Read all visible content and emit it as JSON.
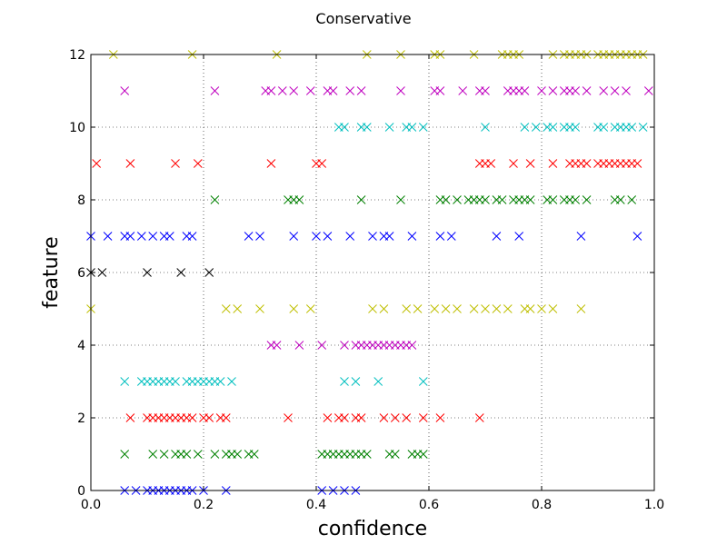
{
  "chart_data": {
    "type": "scatter",
    "title": "Conservative",
    "xlabel": "confidence",
    "ylabel": "feature",
    "xlim": [
      0.0,
      1.0
    ],
    "ylim": [
      0,
      12
    ],
    "x_ticks": [
      "0.0",
      "0.2",
      "0.4",
      "0.6",
      "0.8",
      "1.0"
    ],
    "y_ticks": [
      "0",
      "2",
      "4",
      "6",
      "8",
      "10",
      "12"
    ],
    "grid": true,
    "marker": "x",
    "series": [
      {
        "feature": 0,
        "color": "#0000ff",
        "x": [
          0.06,
          0.08,
          0.1,
          0.11,
          0.12,
          0.13,
          0.14,
          0.15,
          0.16,
          0.17,
          0.18,
          0.2,
          0.24,
          0.41,
          0.43,
          0.45,
          0.47
        ]
      },
      {
        "feature": 1,
        "color": "#008000",
        "x": [
          0.06,
          0.11,
          0.13,
          0.15,
          0.16,
          0.17,
          0.19,
          0.22,
          0.24,
          0.25,
          0.26,
          0.28,
          0.29,
          0.41,
          0.42,
          0.43,
          0.44,
          0.45,
          0.46,
          0.47,
          0.48,
          0.49,
          0.53,
          0.54,
          0.57,
          0.58,
          0.59
        ]
      },
      {
        "feature": 2,
        "color": "#ff0000",
        "x": [
          0.07,
          0.1,
          0.11,
          0.12,
          0.13,
          0.14,
          0.15,
          0.16,
          0.17,
          0.18,
          0.2,
          0.21,
          0.23,
          0.24,
          0.35,
          0.42,
          0.44,
          0.45,
          0.47,
          0.48,
          0.52,
          0.54,
          0.56,
          0.59,
          0.62,
          0.69
        ]
      },
      {
        "feature": 3,
        "color": "#00bfbf",
        "x": [
          0.06,
          0.09,
          0.1,
          0.11,
          0.12,
          0.13,
          0.14,
          0.15,
          0.17,
          0.18,
          0.19,
          0.2,
          0.21,
          0.22,
          0.23,
          0.25,
          0.45,
          0.47,
          0.51,
          0.59
        ]
      },
      {
        "feature": 4,
        "color": "#bf00bf",
        "x": [
          0.32,
          0.33,
          0.37,
          0.41,
          0.45,
          0.47,
          0.48,
          0.49,
          0.5,
          0.51,
          0.52,
          0.53,
          0.54,
          0.55,
          0.56,
          0.57
        ]
      },
      {
        "feature": 5,
        "color": "#bfbf00",
        "x": [
          0.0,
          0.24,
          0.26,
          0.3,
          0.36,
          0.39,
          0.5,
          0.52,
          0.56,
          0.58,
          0.61,
          0.63,
          0.65,
          0.68,
          0.7,
          0.72,
          0.74,
          0.77,
          0.78,
          0.8,
          0.82,
          0.87
        ]
      },
      {
        "feature": 6,
        "color": "#000000",
        "x": [
          0.0,
          0.02,
          0.1,
          0.16,
          0.21
        ]
      },
      {
        "feature": 7,
        "color": "#0000ff",
        "x": [
          0.0,
          0.03,
          0.06,
          0.07,
          0.09,
          0.11,
          0.13,
          0.14,
          0.17,
          0.18,
          0.28,
          0.3,
          0.36,
          0.4,
          0.42,
          0.46,
          0.5,
          0.52,
          0.53,
          0.57,
          0.62,
          0.64,
          0.72,
          0.76,
          0.87,
          0.97
        ]
      },
      {
        "feature": 8,
        "color": "#008000",
        "x": [
          0.22,
          0.35,
          0.36,
          0.37,
          0.48,
          0.55,
          0.62,
          0.63,
          0.65,
          0.67,
          0.68,
          0.69,
          0.7,
          0.72,
          0.73,
          0.75,
          0.76,
          0.77,
          0.78,
          0.81,
          0.82,
          0.84,
          0.85,
          0.86,
          0.88,
          0.93,
          0.94,
          0.96
        ]
      },
      {
        "feature": 9,
        "color": "#ff0000",
        "x": [
          0.01,
          0.07,
          0.15,
          0.19,
          0.32,
          0.4,
          0.41,
          0.69,
          0.7,
          0.71,
          0.75,
          0.78,
          0.82,
          0.85,
          0.86,
          0.87,
          0.88,
          0.9,
          0.91,
          0.92,
          0.93,
          0.94,
          0.95,
          0.96,
          0.97
        ]
      },
      {
        "feature": 10,
        "color": "#00bfbf",
        "x": [
          0.44,
          0.45,
          0.48,
          0.49,
          0.53,
          0.56,
          0.57,
          0.59,
          0.7,
          0.77,
          0.79,
          0.81,
          0.82,
          0.84,
          0.85,
          0.86,
          0.9,
          0.91,
          0.93,
          0.94,
          0.95,
          0.96,
          0.98
        ]
      },
      {
        "feature": 11,
        "color": "#bf00bf",
        "x": [
          0.06,
          0.22,
          0.31,
          0.32,
          0.34,
          0.36,
          0.39,
          0.42,
          0.43,
          0.46,
          0.48,
          0.55,
          0.61,
          0.62,
          0.66,
          0.69,
          0.7,
          0.74,
          0.75,
          0.76,
          0.77,
          0.8,
          0.82,
          0.84,
          0.85,
          0.86,
          0.88,
          0.91,
          0.93,
          0.95,
          0.99
        ]
      },
      {
        "feature": 12,
        "color": "#bfbf00",
        "x": [
          0.04,
          0.18,
          0.33,
          0.49,
          0.55,
          0.61,
          0.62,
          0.68,
          0.73,
          0.74,
          0.75,
          0.76,
          0.82,
          0.84,
          0.85,
          0.86,
          0.87,
          0.88,
          0.9,
          0.91,
          0.92,
          0.93,
          0.94,
          0.95,
          0.96,
          0.97,
          0.98
        ]
      }
    ]
  }
}
